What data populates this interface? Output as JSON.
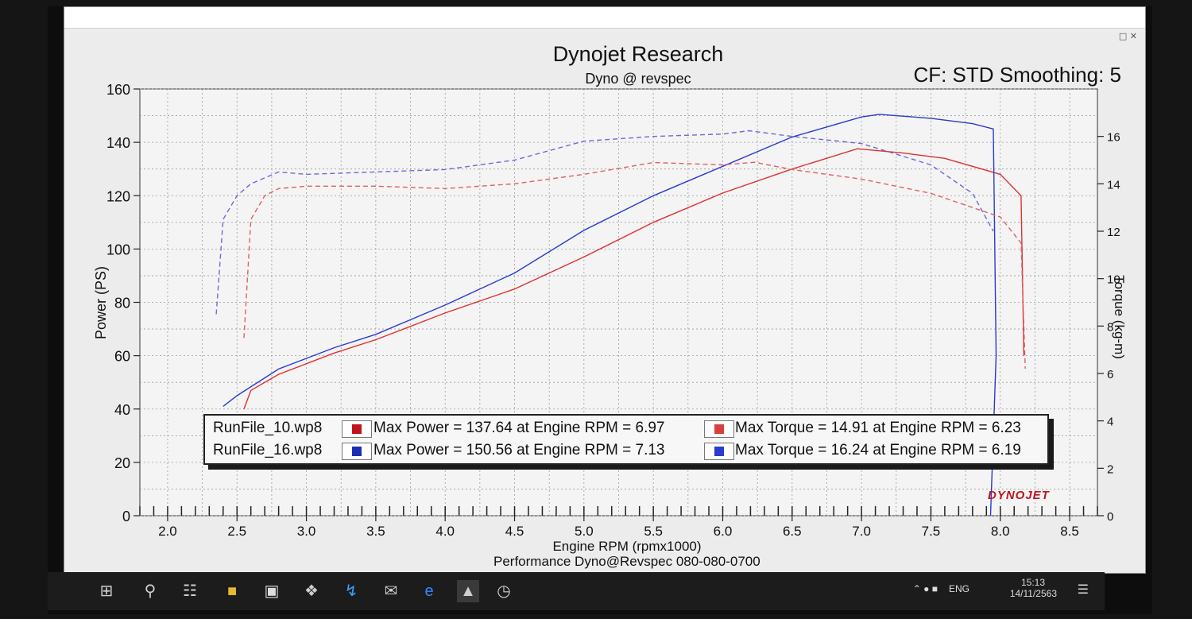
{
  "window": {
    "title": "Dynojet Research",
    "subtitle": "Dyno @ revspec",
    "cf_label": "CF: STD Smoothing: 5",
    "footer": "Performance Dyno@Revspec 080-080-0700",
    "logo": "DYNOJET"
  },
  "legend": {
    "rows": [
      {
        "file": "RunFile_10.wp8",
        "power": "Max Power = 137.64 at Engine RPM = 6.97",
        "torque": "Max Torque = 14.91 at Engine RPM = 6.23",
        "color": "#c0141c"
      },
      {
        "file": "RunFile_16.wp8",
        "power": "Max Power = 150.56 at Engine RPM = 7.13",
        "torque": "Max Torque = 16.24 at Engine RPM = 6.19",
        "color": "#1b2fb5"
      }
    ]
  },
  "chart_data": {
    "type": "line",
    "title": "Dynojet Research",
    "subtitle": "Dyno @ revspec",
    "xlabel": "Engine RPM (rpmx1000)",
    "ylabel": "Power (PS)",
    "y2label": "Torque (kg-m)",
    "xlim": [
      1.8,
      8.7
    ],
    "ylim": [
      0,
      160
    ],
    "y2lim": [
      0,
      18
    ],
    "xticks": [
      "2.0",
      "2.5",
      "3.0",
      "3.5",
      "4.0",
      "4.5",
      "5.0",
      "5.5",
      "6.0",
      "6.5",
      "7.0",
      "7.5",
      "8.0",
      "8.5"
    ],
    "yticks": [
      "0",
      "20",
      "40",
      "60",
      "80",
      "100",
      "120",
      "140",
      "160"
    ],
    "y2ticks": [
      "0",
      "2",
      "4",
      "6",
      "8",
      "10",
      "12",
      "14",
      "16"
    ],
    "grid": true,
    "series": [
      {
        "name": "RunFile_10.wp8",
        "measure": "power",
        "axis": "left",
        "color": "#e03030",
        "dash": false,
        "x": [
          2.55,
          2.6,
          2.8,
          3.0,
          3.2,
          3.5,
          4.0,
          4.5,
          5.0,
          5.5,
          6.0,
          6.5,
          6.97,
          7.3,
          7.6,
          8.0,
          8.15,
          8.17
        ],
        "y": [
          40,
          47,
          53,
          57,
          61,
          66,
          76,
          85,
          97,
          110,
          121,
          130,
          137.6,
          136,
          134,
          128,
          120,
          60
        ]
      },
      {
        "name": "RunFile_16.wp8",
        "measure": "power",
        "axis": "left",
        "color": "#2a3bd0",
        "dash": false,
        "x": [
          2.4,
          2.5,
          2.8,
          3.0,
          3.2,
          3.5,
          4.0,
          4.5,
          5.0,
          5.5,
          6.0,
          6.5,
          7.0,
          7.13,
          7.5,
          7.8,
          7.95,
          7.97,
          7.93
        ],
        "y": [
          41,
          45,
          55,
          59,
          63,
          68,
          79,
          91,
          107,
          120,
          131,
          142,
          149.5,
          150.5,
          149,
          147,
          145,
          60,
          0
        ]
      },
      {
        "name": "RunFile_10.wp8",
        "measure": "torque",
        "axis": "right",
        "color": "#e06060",
        "dash": true,
        "x": [
          2.55,
          2.6,
          2.7,
          2.8,
          3.0,
          3.5,
          4.0,
          4.5,
          5.0,
          5.5,
          6.0,
          6.23,
          6.5,
          7.0,
          7.5,
          8.0,
          8.15,
          8.18
        ],
        "y": [
          7.5,
          12.5,
          13.5,
          13.8,
          13.9,
          13.9,
          13.8,
          14.0,
          14.4,
          14.9,
          14.8,
          14.91,
          14.6,
          14.2,
          13.6,
          12.6,
          11.5,
          6.2
        ]
      },
      {
        "name": "RunFile_16.wp8",
        "measure": "torque",
        "axis": "right",
        "color": "#6a6ad8",
        "dash": true,
        "x": [
          2.35,
          2.4,
          2.5,
          2.6,
          2.8,
          3.0,
          3.5,
          4.0,
          4.5,
          5.0,
          5.5,
          6.0,
          6.19,
          6.5,
          7.0,
          7.5,
          7.8,
          7.95
        ],
        "y": [
          8.5,
          12.5,
          13.5,
          14.0,
          14.5,
          14.4,
          14.5,
          14.6,
          15.0,
          15.8,
          16.0,
          16.1,
          16.24,
          16.0,
          15.7,
          14.8,
          13.6,
          12.0
        ]
      }
    ]
  }
}
